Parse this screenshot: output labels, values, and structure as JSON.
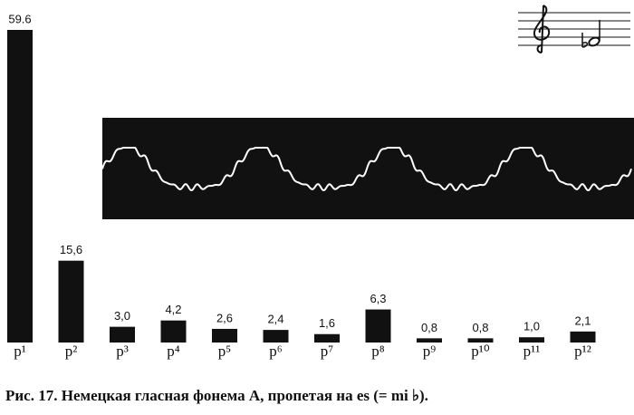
{
  "chart_data": {
    "type": "bar",
    "caption": "Рис. 17. Немецкая гласная фонема A, пропетая на es (= mi ♭).",
    "categories": [
      "p¹",
      "p²",
      "p³",
      "p⁴",
      "p⁵",
      "p⁶",
      "p⁷",
      "p⁸",
      "p⁹",
      "p¹⁰",
      "p¹¹",
      "p¹²"
    ],
    "values": [
      59.6,
      15.6,
      3.0,
      4.2,
      2.6,
      2.4,
      1.6,
      6.3,
      0.8,
      0.8,
      1.0,
      2.1
    ],
    "value_labels": [
      "59.6",
      "15,6",
      "3,0",
      "4,2",
      "2,6",
      "2,4",
      "1,6",
      "6,3",
      "0,8",
      "0,8",
      "1,0",
      "2,1"
    ],
    "color": "#111111"
  }
}
